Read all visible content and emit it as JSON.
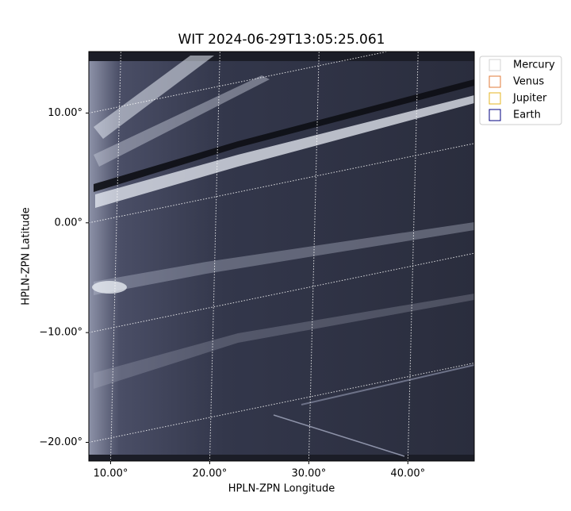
{
  "chart_data": {
    "type": "image",
    "title": "WIT 2024-06-29T13:05:25.061",
    "xlabel": "HPLN-ZPN Longitude",
    "ylabel": "HPLN-ZPN Latitude",
    "xlim": [
      7.8,
      46.7
    ],
    "ylim": [
      -21.7,
      15.6
    ],
    "xticks": [
      {
        "value": 10,
        "label": "10.00°"
      },
      {
        "value": 20,
        "label": "20.00°"
      },
      {
        "value": 30,
        "label": "30.00°"
      },
      {
        "value": 40,
        "label": "40.00°"
      }
    ],
    "yticks": [
      {
        "value": 10,
        "label": "10.00°"
      },
      {
        "value": 0,
        "label": "0.00°"
      },
      {
        "value": -10,
        "label": "−10.00°"
      },
      {
        "value": -20,
        "label": "−20.00°"
      }
    ],
    "grid": true,
    "legend_position": "upper right",
    "legend": [
      {
        "name": "Mercury",
        "color": "#d3d3d3"
      },
      {
        "name": "Venus",
        "color": "#e07b39"
      },
      {
        "name": "Jupiter",
        "color": "#e6b422"
      },
      {
        "name": "Earth",
        "color": "#000080"
      }
    ]
  }
}
